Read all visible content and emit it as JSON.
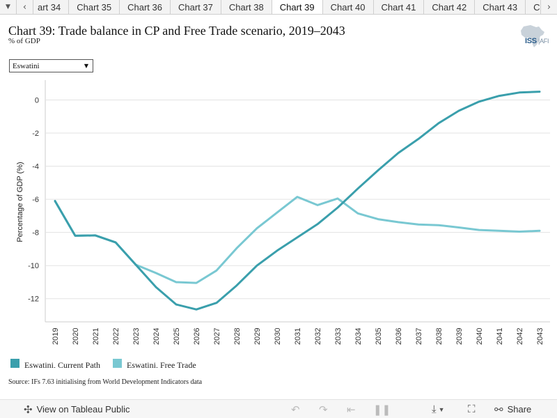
{
  "tabbar": {
    "menu_icon": "caret-down-icon",
    "prev_icon": "chevron-left-icon",
    "next_icon": "chevron-right-icon",
    "tabs": [
      {
        "label": "art 34"
      },
      {
        "label": "Chart 35"
      },
      {
        "label": "Chart 36"
      },
      {
        "label": "Chart 37"
      },
      {
        "label": "Chart 38"
      },
      {
        "label": "Chart 39",
        "active": true
      },
      {
        "label": "Chart 40"
      },
      {
        "label": "Chart 41"
      },
      {
        "label": "Chart 42"
      },
      {
        "label": "Chart 43"
      },
      {
        "label": "Char"
      }
    ]
  },
  "header": {
    "title": "Chart 39: Trade balance in CP and Free Trade scenario, 2019–2043",
    "subtitle": "% of GDP"
  },
  "logo": {
    "text": "ISS",
    "suffix": "AFI"
  },
  "filter": {
    "selected": "Eswatini"
  },
  "chart_data": {
    "type": "line",
    "x": [
      2019,
      2020,
      2021,
      2022,
      2023,
      2024,
      2025,
      2026,
      2027,
      2028,
      2029,
      2030,
      2031,
      2032,
      2033,
      2034,
      2035,
      2036,
      2037,
      2038,
      2039,
      2040,
      2041,
      2042,
      2043
    ],
    "x_tick_labels": [
      "2019",
      "2020",
      "2021",
      "2022",
      "2023",
      "2024",
      "2025",
      "2026",
      "2027",
      "2028",
      "2029",
      "2030",
      "2031",
      "2032",
      "2033",
      "2034",
      "2035",
      "2036",
      "2037",
      "2038",
      "2039",
      "2040",
      "2041",
      "2042",
      "2043"
    ],
    "y_ticks": [
      0,
      -2,
      -4,
      -6,
      -8,
      -10,
      -12
    ],
    "y_tick_labels": [
      "0",
      "-2",
      "-4",
      "-6",
      "-8",
      "-10",
      "-12"
    ],
    "ylim": [
      -13.4,
      1.2
    ],
    "ylabel": "Percentage of GDP (%)",
    "grid": true,
    "series": [
      {
        "name": "Eswatini, Current Path",
        "color": "#3a9fac",
        "values": [
          -6.1,
          -8.2,
          -8.18,
          -8.6,
          -9.95,
          -11.3,
          -12.35,
          -12.65,
          -12.25,
          -11.2,
          -10.0,
          -9.1,
          -8.3,
          -7.5,
          -6.5,
          -5.35,
          -4.25,
          -3.2,
          -2.35,
          -1.4,
          -0.65,
          -0.1,
          0.25,
          0.45,
          0.5
        ]
      },
      {
        "name": "Eswatini, Free Trade",
        "color": "#79c8d2",
        "values": [
          -6.1,
          -8.2,
          -8.18,
          -8.6,
          -9.95,
          -10.45,
          -11.0,
          -11.05,
          -10.3,
          -8.95,
          -7.75,
          -6.8,
          -5.85,
          -6.35,
          -5.95,
          -6.85,
          -7.2,
          -7.38,
          -7.52,
          -7.56,
          -7.7,
          -7.85,
          -7.9,
          -7.95,
          -7.9
        ]
      }
    ]
  },
  "source": "Source: IFs 7.63 initialising from World Development Indicators data",
  "toolbar": {
    "view_label": "View on Tableau Public",
    "share_label": "Share",
    "view_icon": "tableau-logo-icon",
    "undo_icon": "undo-icon",
    "redo_icon": "redo-icon",
    "revert_icon": "revert-icon",
    "pause_icon": "pause-icon",
    "download_icon": "download-icon",
    "fullscreen_icon": "fullscreen-icon",
    "share_icon": "share-icon"
  }
}
